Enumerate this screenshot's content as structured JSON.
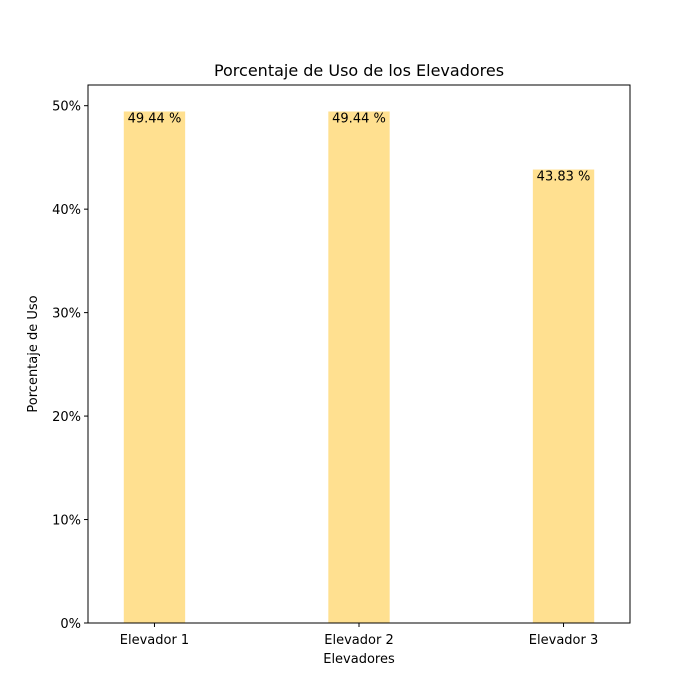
{
  "chart_data": {
    "type": "bar",
    "title": "Porcentaje de Uso de los Elevadores",
    "xlabel": "Elevadores",
    "ylabel": "Porcentaje de Uso",
    "categories": [
      "Elevador 1",
      "Elevador 2",
      "Elevador 3"
    ],
    "values": [
      49.44,
      49.44,
      43.83
    ],
    "data_labels": [
      "49.44 %",
      "49.44 %",
      "43.83 %"
    ],
    "ylim": [
      0,
      52
    ],
    "yticks": [
      0,
      10,
      20,
      30,
      40,
      50
    ],
    "ytick_labels": [
      "0%",
      "10%",
      "20%",
      "30%",
      "40%",
      "50%"
    ],
    "bar_color": "#ffe090",
    "grid": false,
    "legend": false
  }
}
